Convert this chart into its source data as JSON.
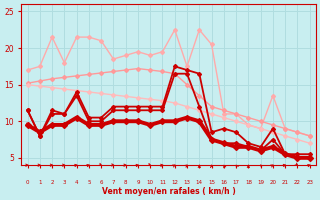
{
  "bg_color": "#c8eef0",
  "grid_color": "#b0dde0",
  "xlabel": "Vent moyen/en rafales ( km/h )",
  "xlabel_color": "#cc0000",
  "tick_color": "#cc0000",
  "xlim": [
    -0.5,
    23.5
  ],
  "ylim": [
    4,
    26
  ],
  "yticks": [
    5,
    10,
    15,
    20,
    25
  ],
  "xticks": [
    0,
    1,
    2,
    3,
    4,
    5,
    6,
    7,
    8,
    9,
    10,
    11,
    12,
    13,
    14,
    15,
    16,
    17,
    18,
    19,
    20,
    21,
    22,
    23
  ],
  "lines": [
    {
      "x": [
        0,
        1,
        2,
        3,
        4,
        5,
        6,
        7,
        8,
        9,
        10,
        11,
        12,
        13,
        14,
        15,
        16,
        17,
        18,
        19,
        20,
        21,
        22,
        23
      ],
      "y": [
        17.0,
        17.5,
        21.5,
        18.0,
        21.5,
        21.5,
        21.0,
        18.5,
        19.0,
        19.5,
        19.0,
        19.5,
        22.5,
        17.5,
        22.5,
        20.5,
        11.0,
        11.0,
        9.5,
        9.0,
        13.5,
        9.0,
        8.5,
        8.0
      ],
      "color": "#ffaaaa",
      "lw": 1.0,
      "marker": "D",
      "ms": 2.0
    },
    {
      "x": [
        0,
        1,
        2,
        3,
        4,
        5,
        6,
        7,
        8,
        9,
        10,
        11,
        12,
        13,
        14,
        15,
        16,
        17,
        18,
        19,
        20,
        21,
        22,
        23
      ],
      "y": [
        15.2,
        15.5,
        15.8,
        16.0,
        16.2,
        16.4,
        16.6,
        16.8,
        17.0,
        17.2,
        17.0,
        16.8,
        16.5,
        15.0,
        13.5,
        12.0,
        11.5,
        11.0,
        10.5,
        10.0,
        9.5,
        9.0,
        8.5,
        8.0
      ],
      "color": "#ff9999",
      "lw": 1.0,
      "marker": "D",
      "ms": 2.0
    },
    {
      "x": [
        0,
        1,
        2,
        3,
        4,
        5,
        6,
        7,
        8,
        9,
        10,
        11,
        12,
        13,
        14,
        15,
        16,
        17,
        18,
        19,
        20,
        21,
        22,
        23
      ],
      "y": [
        15.0,
        14.8,
        14.6,
        14.4,
        14.2,
        14.0,
        13.8,
        13.6,
        13.4,
        13.2,
        13.0,
        12.8,
        12.5,
        12.0,
        11.5,
        11.0,
        10.5,
        10.0,
        9.5,
        9.0,
        8.5,
        8.0,
        7.5,
        7.0
      ],
      "color": "#ffbbbb",
      "lw": 1.0,
      "marker": "D",
      "ms": 2.0
    },
    {
      "x": [
        0,
        1,
        2,
        3,
        4,
        5,
        6,
        7,
        8,
        9,
        10,
        11,
        12,
        13,
        14,
        15,
        16,
        17,
        18,
        19,
        20,
        21,
        22,
        23
      ],
      "y": [
        11.5,
        8.0,
        11.5,
        11.0,
        14.0,
        10.5,
        10.5,
        12.0,
        12.0,
        12.0,
        12.0,
        12.0,
        17.5,
        17.0,
        16.5,
        8.5,
        9.0,
        8.5,
        7.0,
        6.5,
        9.0,
        5.5,
        5.5,
        5.5
      ],
      "color": "#cc0000",
      "lw": 1.3,
      "marker": "D",
      "ms": 2.0
    },
    {
      "x": [
        0,
        1,
        2,
        3,
        4,
        5,
        6,
        7,
        8,
        9,
        10,
        11,
        12,
        13,
        14,
        15,
        16,
        17,
        18,
        19,
        20,
        21,
        22,
        23
      ],
      "y": [
        11.5,
        8.0,
        11.0,
        11.0,
        13.5,
        10.0,
        10.0,
        11.5,
        11.5,
        11.5,
        11.5,
        11.5,
        16.5,
        16.5,
        12.0,
        7.5,
        7.0,
        7.0,
        6.5,
        6.0,
        7.5,
        5.5,
        5.0,
        5.0
      ],
      "color": "#cc0000",
      "lw": 1.3,
      "marker": "D",
      "ms": 2.0
    },
    {
      "x": [
        0,
        1,
        2,
        3,
        4,
        5,
        6,
        7,
        8,
        9,
        10,
        11,
        12,
        13,
        14,
        15,
        16,
        17,
        18,
        19,
        20,
        21,
        22,
        23
      ],
      "y": [
        9.5,
        8.5,
        9.5,
        9.5,
        10.5,
        9.5,
        9.5,
        10.0,
        10.0,
        10.0,
        9.5,
        10.0,
        10.0,
        10.5,
        10.0,
        7.5,
        7.0,
        6.5,
        6.5,
        6.0,
        6.5,
        5.5,
        5.0,
        5.0
      ],
      "color": "#cc0000",
      "lw": 2.8,
      "marker": "D",
      "ms": 3.0
    }
  ],
  "wind_arrow_angles": [
    90,
    90,
    90,
    90,
    80,
    75,
    120,
    100,
    90,
    80,
    115,
    85,
    60,
    50,
    0,
    0,
    340,
    330,
    0,
    315,
    60,
    80,
    130,
    75
  ],
  "arrow_color": "#cc0000"
}
